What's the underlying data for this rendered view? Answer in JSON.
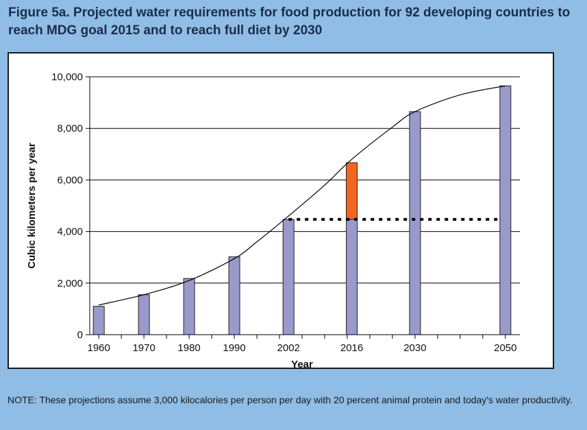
{
  "title": "Figure 5a. Projected water requirements for food production for 92 developing countries to reach MDG goal 2015 and to reach full diet by 2030",
  "note": "NOTE: These projections assume 3,000 kilocalories per person per day with 20 percent animal protein and today's water productivity.",
  "colors": {
    "background": "#8fbde6",
    "bar": "#9999cc",
    "bar_stroke": "#222222",
    "highlight": "#f26522",
    "title": "#1a2d4a"
  },
  "chart_data": {
    "type": "bar",
    "xlabel": "Year",
    "ylabel": "Cubic kilometers per year",
    "ylim": [
      0,
      10000
    ],
    "xlim": [
      1958,
      2052
    ],
    "yticks": [
      0,
      2000,
      4000,
      6000,
      8000,
      10000
    ],
    "ytick_labels": [
      "0",
      "2,000",
      "4,000",
      "6,000",
      "8,000",
      "10,000"
    ],
    "grid": true,
    "bars": [
      {
        "year": 1960,
        "label": "1960",
        "value": 1100
      },
      {
        "year": 1970,
        "label": "1970",
        "value": 1550
      },
      {
        "year": 1980,
        "label": "1980",
        "value": 2180
      },
      {
        "year": 1990,
        "label": "1990",
        "value": 3020
      },
      {
        "year": 2002,
        "label": "2002",
        "value": 4470
      },
      {
        "year": 2016,
        "label": "2016",
        "value": 4470,
        "extra": 2200
      },
      {
        "year": 2030,
        "label": "2030",
        "value": 8650
      },
      {
        "year": 2050,
        "label": "2050",
        "value": 9650
      }
    ],
    "trend_curve": {
      "x": [
        1960,
        1970,
        1980,
        1990,
        1995,
        2002,
        2010,
        2016,
        2025,
        2030,
        2040,
        2050
      ],
      "y": [
        1150,
        1550,
        2100,
        2950,
        3600,
        4600,
        5800,
        6800,
        8050,
        8650,
        9300,
        9650
      ]
    },
    "reference_line": {
      "value": 4470,
      "from_year": 2002,
      "to_year": 2050,
      "style": "dashed"
    }
  }
}
